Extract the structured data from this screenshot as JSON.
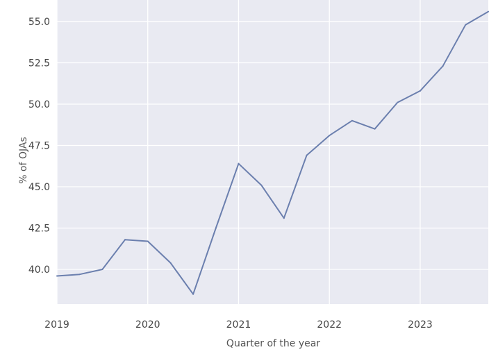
{
  "chart_data": {
    "type": "line",
    "xlabel": "Quarter of the year",
    "ylabel": "% of OJAs",
    "x_tick_labels": [
      "2019",
      "2020",
      "2021",
      "2022",
      "2023"
    ],
    "y_tick_labels": [
      "40.0",
      "42.5",
      "45.0",
      "47.5",
      "50.0",
      "52.5",
      "55.0"
    ],
    "x_tick_values": [
      2019,
      2020,
      2021,
      2022,
      2023
    ],
    "y_tick_values": [
      40.0,
      42.5,
      45.0,
      47.5,
      50.0,
      52.5,
      55.0
    ],
    "xlim": [
      2019,
      2023.75
    ],
    "ylim": [
      37.9,
      56.3
    ],
    "grid": true,
    "legend": "none",
    "colors": {
      "background": "#e9eaf2",
      "grid": "#ffffff",
      "line": "#6b7fae"
    },
    "series": [
      {
        "x": [
          2019.0,
          2019.25,
          2019.5,
          2019.75,
          2020.0,
          2020.25,
          2020.5,
          2020.75,
          2021.0,
          2021.25,
          2021.5,
          2021.75,
          2022.0,
          2022.25,
          2022.5,
          2022.75,
          2023.0,
          2023.25,
          2023.5,
          2023.75
        ],
        "values": [
          39.6,
          39.7,
          40.0,
          41.8,
          41.7,
          40.4,
          38.5,
          42.5,
          46.4,
          45.1,
          43.1,
          46.9,
          48.1,
          49.0,
          48.5,
          50.1,
          50.8,
          52.3,
          54.8,
          55.6
        ]
      }
    ]
  }
}
